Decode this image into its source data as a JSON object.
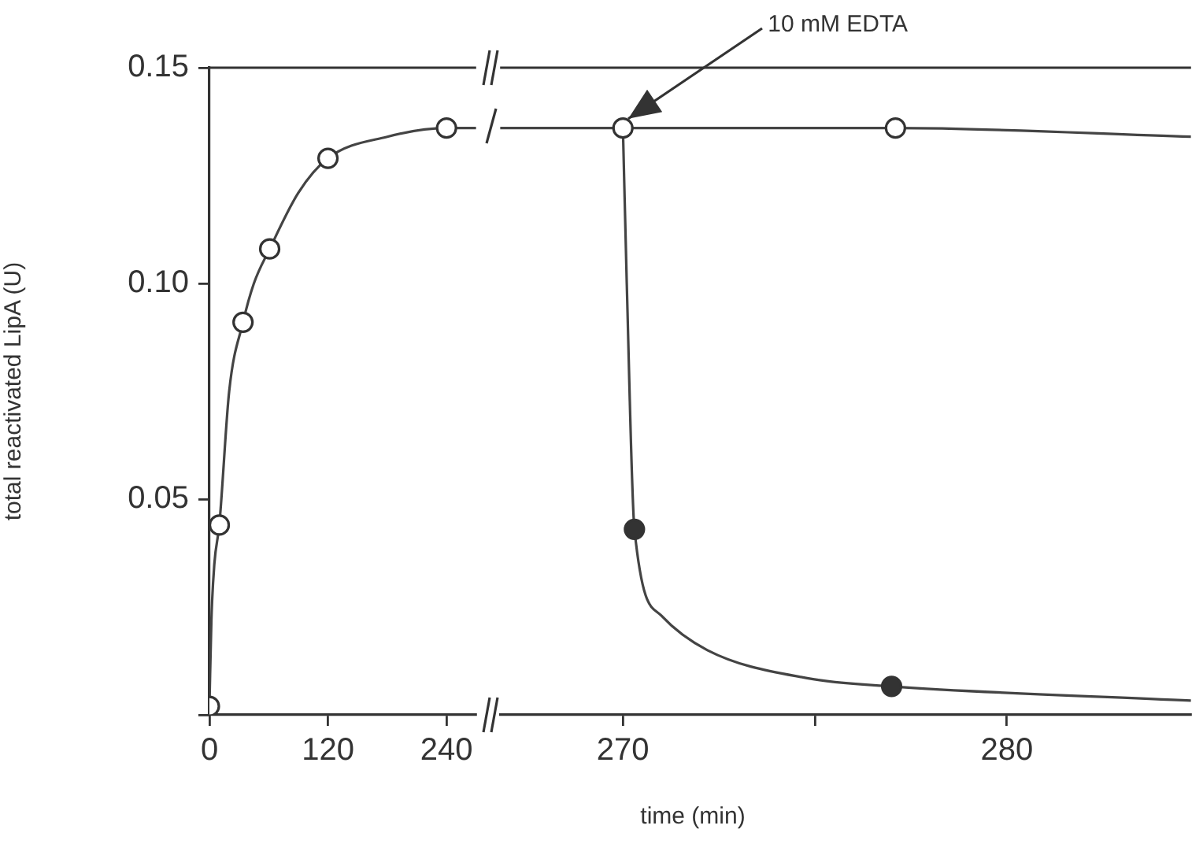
{
  "chart_data": [
    {
      "type": "scatter",
      "ylabel": "total reactivated LipA (U)",
      "xlim": [
        0,
        270
      ],
      "xticks": [
        0,
        120,
        240
      ],
      "ylim": [
        0,
        0.15
      ],
      "yticks": [
        {
          "value": 0,
          "label": null
        },
        0.05,
        {
          "value": 0.1,
          "label": "0.10"
        },
        0.15
      ],
      "marker": "circle",
      "series": [
        {
          "type": "line",
          "color": "#444444",
          "marker": "none",
          "x": [
            0,
            2,
            5,
            10,
            20,
            34,
            45,
            61,
            90,
            120,
            180,
            240,
            270
          ],
          "values": [
            0.002,
            0.022,
            0.035,
            0.044,
            0.075,
            0.091,
            0.1,
            0.108,
            0.121,
            0.129,
            0.134,
            0.136,
            0.136
          ]
        },
        {
          "color": "#ffffff",
          "x": [
            0,
            10,
            34,
            61,
            120,
            240
          ],
          "values": [
            0.002,
            0.044,
            0.091,
            0.108,
            0.129,
            0.136
          ]
        }
      ]
    },
    {
      "type": "scatter",
      "xlabel": "time (min)",
      "xlim": [
        266.8,
        284.8
      ],
      "xticks": [
        270,
        {
          "value": 275,
          "label": null
        },
        280
      ],
      "ylim": [
        0,
        0.15
      ],
      "tick_labels": "x",
      "marker": "circle",
      "annotations": [
        {
          "text": "10 mM EDTA",
          "x": 270,
          "y": 0.136
        }
      ],
      "series": [
        {
          "type": "line",
          "color": "#444444",
          "marker": "none",
          "x": [
            266.8,
            270,
            277.1,
            284.8
          ],
          "values": [
            0.136,
            0.136,
            0.136,
            0.134
          ]
        },
        {
          "type": "line",
          "color": "#444444",
          "marker": "none",
          "x": [
            270,
            270.1,
            270.3,
            271,
            272.2,
            274.8,
            277,
            284.8
          ],
          "values": [
            0.136,
            0.1,
            0.043,
            0.023,
            0.015,
            0.0085,
            0.0066,
            0.0033
          ]
        },
        {
          "color": "#ffffff",
          "x": [
            270,
            277.1
          ],
          "values": [
            0.136,
            0.136
          ]
        },
        {
          "color": "#333333",
          "x": [
            270.3,
            277
          ],
          "values": [
            0.043,
            0.0066
          ]
        }
      ]
    }
  ]
}
